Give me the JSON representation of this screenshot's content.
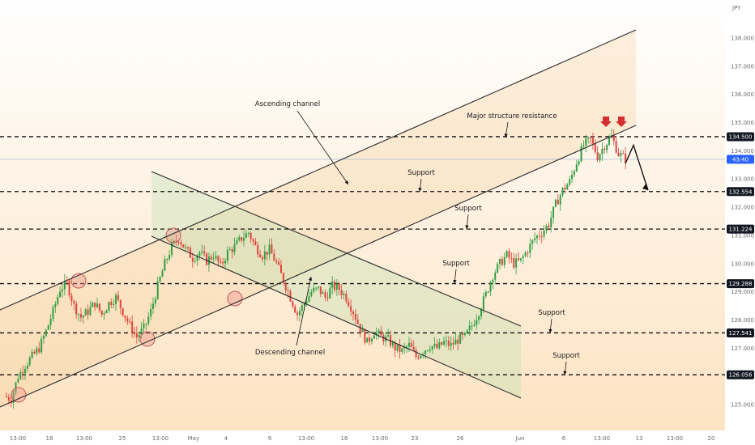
{
  "chart_data": {
    "type": "candlestick",
    "currency": "JPY",
    "ylim": [
      124.4,
      138.9
    ],
    "y_ticks": [
      125.0,
      126.0,
      127.0,
      128.0,
      129.0,
      130.0,
      131.0,
      132.0,
      133.0,
      134.0,
      135.0,
      136.0,
      137.0,
      138.0
    ],
    "x_ticks": [
      "13:00",
      "18",
      "13:00",
      "25",
      "13:00",
      "May",
      "4",
      "9",
      "13:00",
      "16",
      "13:00",
      "23",
      "26",
      "Jun",
      "6",
      "13:00",
      "13",
      "13:00",
      "20"
    ],
    "price_levels": [
      {
        "value": "134.500",
        "label": ""
      },
      {
        "value": "132.554",
        "label": "Support"
      },
      {
        "value": "131.224",
        "label": "Support"
      },
      {
        "value": "129.288",
        "label": "Support"
      },
      {
        "value": "127.541",
        "label": "Support"
      },
      {
        "value": "126.056",
        "label": "Support"
      }
    ],
    "last_price": "133.7",
    "countdown": "43:40",
    "annotations": {
      "ascending_channel": "Ascending channel",
      "descending_channel": "Descending channel",
      "resistance": "Major structure resistance"
    },
    "price_path": [
      125.3,
      125.2,
      126.0,
      126.4,
      126.7,
      127.0,
      127.6,
      128.3,
      129.1,
      129.3,
      128.5,
      128.1,
      128.3,
      128.6,
      128.2,
      128.6,
      128.8,
      128.3,
      127.8,
      127.4,
      127.7,
      128.3,
      129.2,
      130.0,
      130.6,
      130.9,
      130.5,
      130.2,
      130.4,
      130.1,
      130.3,
      129.9,
      130.4,
      130.6,
      130.9,
      131.1,
      130.6,
      130.3,
      130.5,
      130.0,
      129.4,
      128.8,
      128.2,
      128.6,
      129.0,
      129.1,
      128.8,
      129.2,
      129.1,
      128.8,
      128.3,
      127.7,
      127.2,
      127.6,
      127.4,
      127.3,
      127.0,
      126.9,
      127.1,
      126.7,
      126.9,
      127.1,
      127.0,
      127.2,
      127.1,
      127.3,
      127.4,
      127.8,
      128.3,
      128.9,
      129.6,
      130.0,
      130.3,
      130.0,
      130.1,
      130.5,
      130.9,
      131.1,
      131.4,
      132.1,
      132.6,
      132.9,
      133.6,
      134.2,
      134.4,
      133.8,
      134.2,
      134.5,
      133.9,
      133.7
    ],
    "projection": [
      134.2,
      132.6
    ]
  }
}
